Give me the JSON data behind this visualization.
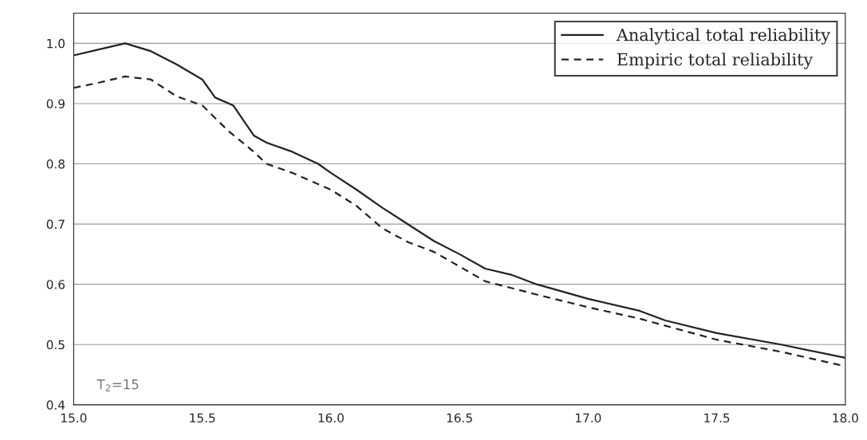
{
  "chart_data": {
    "type": "line",
    "x": [
      15.0,
      15.1,
      15.2,
      15.3,
      15.4,
      15.5,
      15.55,
      15.62,
      15.7,
      15.75,
      15.85,
      15.95,
      16.0,
      16.1,
      16.2,
      16.4,
      16.5,
      16.6,
      16.7,
      16.8,
      17.0,
      17.2,
      17.3,
      17.5,
      17.75,
      18.0
    ],
    "series": [
      {
        "name": "Analytical total reliability",
        "color": "#222222",
        "line_style": "solid",
        "values": [
          0.98,
          0.99,
          1.0,
          0.987,
          0.965,
          0.94,
          0.91,
          0.897,
          0.847,
          0.835,
          0.82,
          0.8,
          0.785,
          0.757,
          0.727,
          0.672,
          0.65,
          0.626,
          0.616,
          0.6,
          0.576,
          0.556,
          0.54,
          0.519,
          0.5,
          0.478
        ]
      },
      {
        "name": "Empiric total reliability",
        "color": "#222222",
        "line_style": "dashed",
        "x": [
          15.0,
          15.1,
          15.2,
          15.3,
          15.4,
          15.5,
          15.6,
          15.7,
          15.75,
          15.85,
          16.0,
          16.1,
          16.2,
          16.3,
          16.4,
          16.6,
          16.8,
          17.0,
          17.2,
          17.5,
          17.75,
          18.0
        ],
        "values": [
          0.926,
          0.935,
          0.945,
          0.94,
          0.912,
          0.897,
          0.855,
          0.82,
          0.8,
          0.785,
          0.757,
          0.73,
          0.693,
          0.67,
          0.654,
          0.605,
          0.583,
          0.562,
          0.543,
          0.508,
          0.488,
          0.464
        ]
      }
    ],
    "xlim": [
      15.0,
      18.0
    ],
    "xticks": [
      {
        "value": 15.0,
        "label": "15.0"
      },
      {
        "value": 15.5,
        "label": "15.5"
      },
      {
        "value": 16.0,
        "label": "16.0"
      },
      {
        "value": 16.5,
        "label": "16.5"
      },
      {
        "value": 17.0,
        "label": "17.0"
      },
      {
        "value": 17.5,
        "label": "17.5"
      },
      {
        "value": 18.0,
        "label": "18.0"
      }
    ],
    "ylim": [
      0.4,
      1.05
    ],
    "yticks": [
      {
        "value": 0.4,
        "label": "0.4"
      },
      {
        "value": 0.5,
        "label": "0.5"
      },
      {
        "value": 0.6,
        "label": "0.6"
      },
      {
        "value": 0.7,
        "label": "0.7"
      },
      {
        "value": 0.8,
        "label": "0.8"
      },
      {
        "value": 0.9,
        "label": "0.9"
      },
      {
        "value": 1.0,
        "label": "1.0"
      }
    ],
    "grid": "y",
    "legend": "top right",
    "marker": "none",
    "annotations": [
      {
        "text": "T$_{2}$=15"
      }
    ]
  }
}
